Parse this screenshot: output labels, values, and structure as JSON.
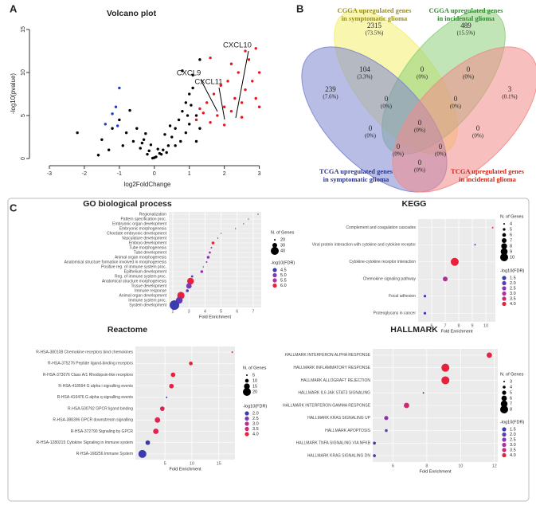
{
  "panel_labels": [
    "A",
    "B",
    "C"
  ],
  "venn": {
    "sets": [
      {
        "lines": [
          "CGGA upregulated genes",
          "in symptomatic glioma"
        ],
        "color": "#9a8f1e",
        "fill": "#f4ef6e"
      },
      {
        "lines": [
          "CGGA upregulated genes",
          "in incidental glioma"
        ],
        "color": "#2e8b2e",
        "fill": "#8ed07a"
      },
      {
        "lines": [
          "TCGA upregulated genes",
          "in symptomatic glioma"
        ],
        "color": "#2a3590",
        "fill": "#7d86d2"
      },
      {
        "lines": [
          "TCGA upregulated genes",
          "in incidental glioma"
        ],
        "color": "#d02a1a",
        "fill": "#f28b8b"
      }
    ],
    "regions": [
      {
        "count": 2315,
        "percent": "(73.5%)"
      },
      {
        "count": 489,
        "percent": "(15.5%)"
      },
      {
        "count": 104,
        "percent": "(3.3%)"
      },
      {
        "count": 0,
        "percent": "(0%)"
      },
      {
        "count": 0,
        "percent": "(0%)"
      },
      {
        "count": 239,
        "percent": "(7.6%)"
      },
      {
        "count": 0,
        "percent": "(0%)"
      },
      {
        "count": 0,
        "percent": "(0%)"
      },
      {
        "count": 3,
        "percent": "(0.1%)"
      },
      {
        "count": 0,
        "percent": "(0%)"
      },
      {
        "count": 0,
        "percent": "(0%)"
      },
      {
        "count": 0,
        "percent": "(0%)"
      },
      {
        "count": 0,
        "percent": "(0%)"
      },
      {
        "count": 0,
        "percent": "(0%)"
      },
      {
        "count": 0,
        "percent": "(0%)"
      }
    ]
  },
  "chart_data": [
    {
      "type": "scatter",
      "title": "Volcano plot",
      "x_label": "log2FoldChange",
      "y_label": "-log10(pvalue)",
      "xlim": [
        -3.5,
        3.1
      ],
      "ylim": [
        -0.55,
        15.65
      ],
      "xticks": [
        -3,
        -2,
        -1,
        0,
        1,
        2,
        3
      ],
      "yticks": [
        0,
        5,
        10,
        15
      ],
      "annotations": [
        "CXCL10",
        "CXCL11",
        "CXCL9"
      ],
      "series": [
        {
          "color": "#000000",
          "x": [
            -2.2,
            -1.5,
            -1.2,
            -1.0,
            -0.8,
            -0.6,
            -0.4,
            -0.2,
            0,
            0.2,
            0.4,
            0.5,
            0.6,
            0.7,
            0.8,
            0.9,
            1.0,
            1.1,
            1.2,
            0.9,
            0.6,
            -0.5,
            -0.3,
            1.0,
            1.2,
            0.3,
            -0.9,
            -1.3,
            1.3,
            0.8,
            1.1,
            1.3,
            -0.1,
            0.1,
            -0.7,
            -1.6,
            -0.05,
            0.05,
            0.15,
            -0.15,
            0.35,
            -0.35,
            0.45,
            0.75,
            0.95,
            1.05,
            -0.25,
            0.25
          ],
          "y": [
            3.0,
            2.2,
            3.5,
            4.5,
            3.0,
            2.0,
            1.2,
            0.5,
            0.1,
            0.5,
            1.5,
            2.5,
            3.5,
            4.5,
            5.5,
            6.5,
            7.5,
            8.2,
            5.0,
            3.0,
            1.5,
            3.5,
            2.2,
            4.0,
            2.0,
            2.8,
            1.5,
            1.0,
            3.5,
            10.2,
            9.7,
            11.5,
            1.6,
            1.1,
            5.6,
            0.4,
            0.05,
            0.2,
            0.6,
            0.9,
            0.7,
            1.8,
            3.8,
            2.0,
            5.0,
            6.2,
            2.9,
            1.0
          ]
        },
        {
          "color": "#e8141e",
          "x": [
            1.2,
            1.4,
            1.5,
            1.6,
            1.7,
            1.8,
            1.9,
            2.0,
            2.1,
            2.2,
            2.3,
            2.4,
            2.5,
            2.6,
            2.7,
            2.8,
            2.9,
            3.0,
            2.6,
            2.9,
            3.0,
            1.6,
            2.2,
            2.5,
            1.3,
            2.0
          ],
          "y": [
            4.5,
            5.3,
            6.5,
            4.2,
            7.5,
            5.0,
            8.5,
            6.0,
            9.0,
            5.5,
            7.0,
            10.0,
            6.5,
            8.0,
            11.5,
            9.0,
            7.0,
            10.0,
            12.5,
            12.8,
            6.0,
            11.7,
            11.0,
            4.8,
            5.8,
            3.9
          ]
        },
        {
          "color": "#2040c8",
          "x": [
            -1.0,
            -1.2,
            -1.1,
            -1.4,
            -1.05
          ],
          "y": [
            8.2,
            5.2,
            6.0,
            4.0,
            3.8
          ]
        }
      ]
    },
    {
      "type": "dot",
      "title": "GO biological process",
      "x_label": "Fold Enrichment",
      "xlim": [
        1.75,
        7.5
      ],
      "xticks": [
        2,
        3,
        4,
        5,
        6,
        7
      ],
      "categories": [
        "Regionalization",
        "Pattern specification proc.",
        "Embryonic organ development",
        "Embryonic morphogenesis",
        "Chordate embryonic development",
        "Vasculature development",
        "Embryo development",
        "Tube morphogenesis",
        "Tube development",
        "Animal organ morphogenesis",
        "Anatomical structure formation involved in morphogenesis",
        "Positive reg. of immune system proc.",
        "Epithelium development",
        "Reg. of immune system proc.",
        "Anatomical structure morphogenesis",
        "Tissue development",
        "Immune response",
        "Animal organ development",
        "Immune system proc.",
        "System development"
      ],
      "values": [
        7.3,
        6.7,
        6.4,
        5.9,
        5.0,
        4.8,
        4.5,
        4.4,
        4.3,
        4.2,
        4.1,
        3.9,
        3.8,
        3.2,
        3.1,
        3.0,
        2.9,
        2.5,
        2.4,
        2.1
      ],
      "sizes": [
        10,
        14,
        16,
        17,
        18,
        18,
        24,
        20,
        22,
        24,
        20,
        19,
        24,
        22,
        36,
        32,
        24,
        38,
        36,
        45
      ],
      "color_values": [
        4.5,
        5.4,
        5.2,
        5.0,
        4.8,
        4.7,
        6.0,
        5.3,
        5.4,
        5.1,
        4.9,
        5.0,
        5.2,
        4.6,
        6.0,
        5.0,
        4.7,
        6.0,
        4.8,
        4.5
      ],
      "size_legend": {
        "title": "N. of Genes",
        "ticks": [
          20,
          30,
          40
        ]
      },
      "color_legend": {
        "title": "-log10(FDR)",
        "ticks": [
          4.5,
          {
            "value": 5,
            "label": "5.0"
          },
          5.5,
          {
            "value": 6,
            "label": "6.0"
          }
        ],
        "colors": [
          "#3b3bb0",
          "#7a3ab5",
          "#b0309a",
          "#e8203a"
        ]
      }
    },
    {
      "type": "dot",
      "title": "KEGG",
      "x_label": "Fold Enrichment",
      "xlim": [
        5.0,
        10.7
      ],
      "xticks": [
        6,
        7,
        8,
        9,
        10
      ],
      "categories": [
        "Complement and coagulation cascades",
        "Viral protein interaction with cytokine and cytokine receptor",
        "Cytokine-cytokine receptor interaction",
        "Chemokine signaling pathway",
        "Focal adhesion",
        "Proteoglycans in cancer"
      ],
      "values": [
        10.5,
        9.2,
        7.7,
        7.0,
        5.5,
        5.5
      ],
      "sizes": [
        4,
        4,
        10,
        7,
        5,
        5
      ],
      "color_values": [
        4.0,
        1.6,
        4.0,
        3.0,
        1.6,
        1.6
      ],
      "size_legend": {
        "title": "N. of Genes",
        "ticks": [
          4,
          5,
          6,
          7,
          8,
          9,
          10
        ]
      },
      "color_legend": {
        "title": "-log10(FDR)",
        "ticks": [
          1.5,
          {
            "value": 2,
            "label": "2.0"
          },
          2.5,
          {
            "value": 3,
            "label": "3.0"
          },
          3.5,
          {
            "value": 4,
            "label": "4.0"
          }
        ],
        "colors": [
          "#3b3bb0",
          "#5a3ab8",
          "#8a35b0",
          "#b0309a",
          "#d02870",
          "#e8203a"
        ]
      }
    },
    {
      "type": "dot",
      "title": "Reactome",
      "x_label": "Fold Enrichment",
      "xlim": [
        -0.5,
        18
      ],
      "xticks": [
        5,
        10,
        15
      ],
      "categories": [
        "R-HSA-380108 Chemokine receptors bind chemokines",
        "R-HSA-375276 Peptide ligand-binding receptors",
        "R-HSA-373076 Class A/1 Rhodopsin-like receptors",
        "R-HSA-418594 G alpha i signalling events",
        "R-HSA-416476 G alpha q signalling events",
        "R-HSA-500792 GPCR ligand binding",
        "R-HSA-388396 GPCR downstream signalling",
        "R-HSA-372790 Signaling by GPCR",
        "R-HSA-1280215 Cytokine Signaling in Immune system",
        "R-HSA-168256 Immune System"
      ],
      "values": [
        17.5,
        9.8,
        6.5,
        6.2,
        5.3,
        4.5,
        3.6,
        3.3,
        1.8,
        0.8
      ],
      "sizes": [
        5,
        10,
        12,
        12,
        5,
        12,
        14,
        14,
        12,
        20
      ],
      "color_values": [
        4.0,
        4.0,
        4.0,
        3.9,
        2.0,
        3.8,
        3.8,
        3.8,
        2.0,
        2.0
      ],
      "size_legend": {
        "title": "N. of Genes",
        "ticks": [
          5,
          10,
          15,
          20
        ]
      },
      "color_legend": {
        "title": "-log10(FDR)",
        "ticks": [
          {
            "value": 2,
            "label": "2.0"
          },
          2.5,
          {
            "value": 3,
            "label": "3.0"
          },
          3.5,
          {
            "value": 4,
            "label": "4.0"
          }
        ],
        "colors": [
          "#3b3bb0",
          "#7a3ab5",
          "#b0309a",
          "#d02870",
          "#e8203a"
        ]
      }
    },
    {
      "type": "dot",
      "title": "HALLMARK",
      "x_label": "Fold Enrichment",
      "xlim": [
        4.8,
        12.2
      ],
      "xticks": [
        6,
        8,
        10,
        12
      ],
      "categories": [
        "HALLMARK INTERFERON ALPHA RESPONSE",
        "HALLMARK INFLAMMATORY RESPONSE",
        "HALLMARK ALLOGRAFT REJECTION",
        "HALLMARK IL6 JAK STAT3 SIGNALING",
        "HALLMARK INTERFERON GAMMA RESPONSE",
        "HALLMARK KRAS SIGNALING UP",
        "HALLMARK APOPTOSIS",
        "HALLMARK TNFA SIGNALING VIA NFKB",
        "HALLMARK KRAS SIGNALING DN"
      ],
      "values": [
        11.7,
        9.1,
        9.1,
        7.8,
        6.8,
        5.6,
        5.6,
        4.9,
        4.9
      ],
      "sizes": [
        6,
        8,
        8,
        3,
        6,
        5,
        4,
        4,
        4
      ],
      "color_values": [
        3.9,
        4.0,
        4.0,
        1.5,
        3.5,
        2.5,
        2.0,
        1.5,
        1.5
      ],
      "size_legend": {
        "title": "N. of Genes",
        "ticks": [
          3,
          4,
          5,
          6,
          7,
          8
        ]
      },
      "color_legend": {
        "title": "-log10(FDR)",
        "ticks": [
          1.5,
          {
            "value": 2,
            "label": "2.0"
          },
          2.5,
          {
            "value": 3,
            "label": "3.0"
          },
          3.5,
          {
            "value": 4,
            "label": "4.0"
          }
        ],
        "colors": [
          "#3b3bb0",
          "#5a3ab8",
          "#8a35b0",
          "#b0309a",
          "#d02870",
          "#e8203a"
        ]
      }
    }
  ]
}
